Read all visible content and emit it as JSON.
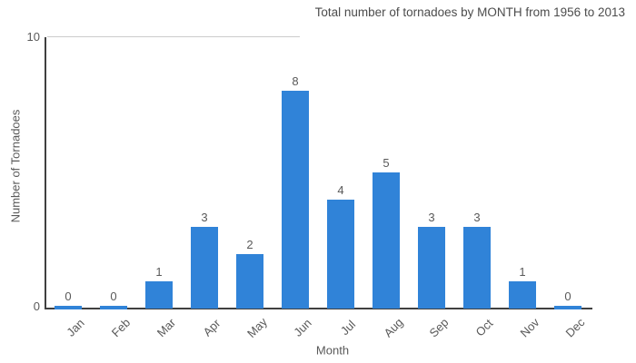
{
  "chart_data": {
    "type": "bar",
    "title": "Total number of tornadoes by MONTH from 1956 to 2013",
    "xlabel": "Month",
    "ylabel": "Number of Tornadoes",
    "categories": [
      "Jan",
      "Feb",
      "Mar",
      "Apr",
      "May",
      "Jun",
      "Jul",
      "Aug",
      "Sep",
      "Oct",
      "Nov",
      "Dec"
    ],
    "values": [
      0,
      0,
      1,
      3,
      2,
      8,
      4,
      5,
      3,
      3,
      1,
      0
    ],
    "value_labels_shown": true,
    "ylim": [
      0,
      10
    ],
    "yticks": [
      "10",
      "0"
    ],
    "legend": "none",
    "grid": "single top gridline at y=10",
    "colors": {
      "bar": "#3083d8",
      "axis_line": "#404040",
      "gridline": "#cccccc",
      "tick_text": "#595959",
      "title_text": "#4c4c4c",
      "background": "#ffffff"
    }
  }
}
